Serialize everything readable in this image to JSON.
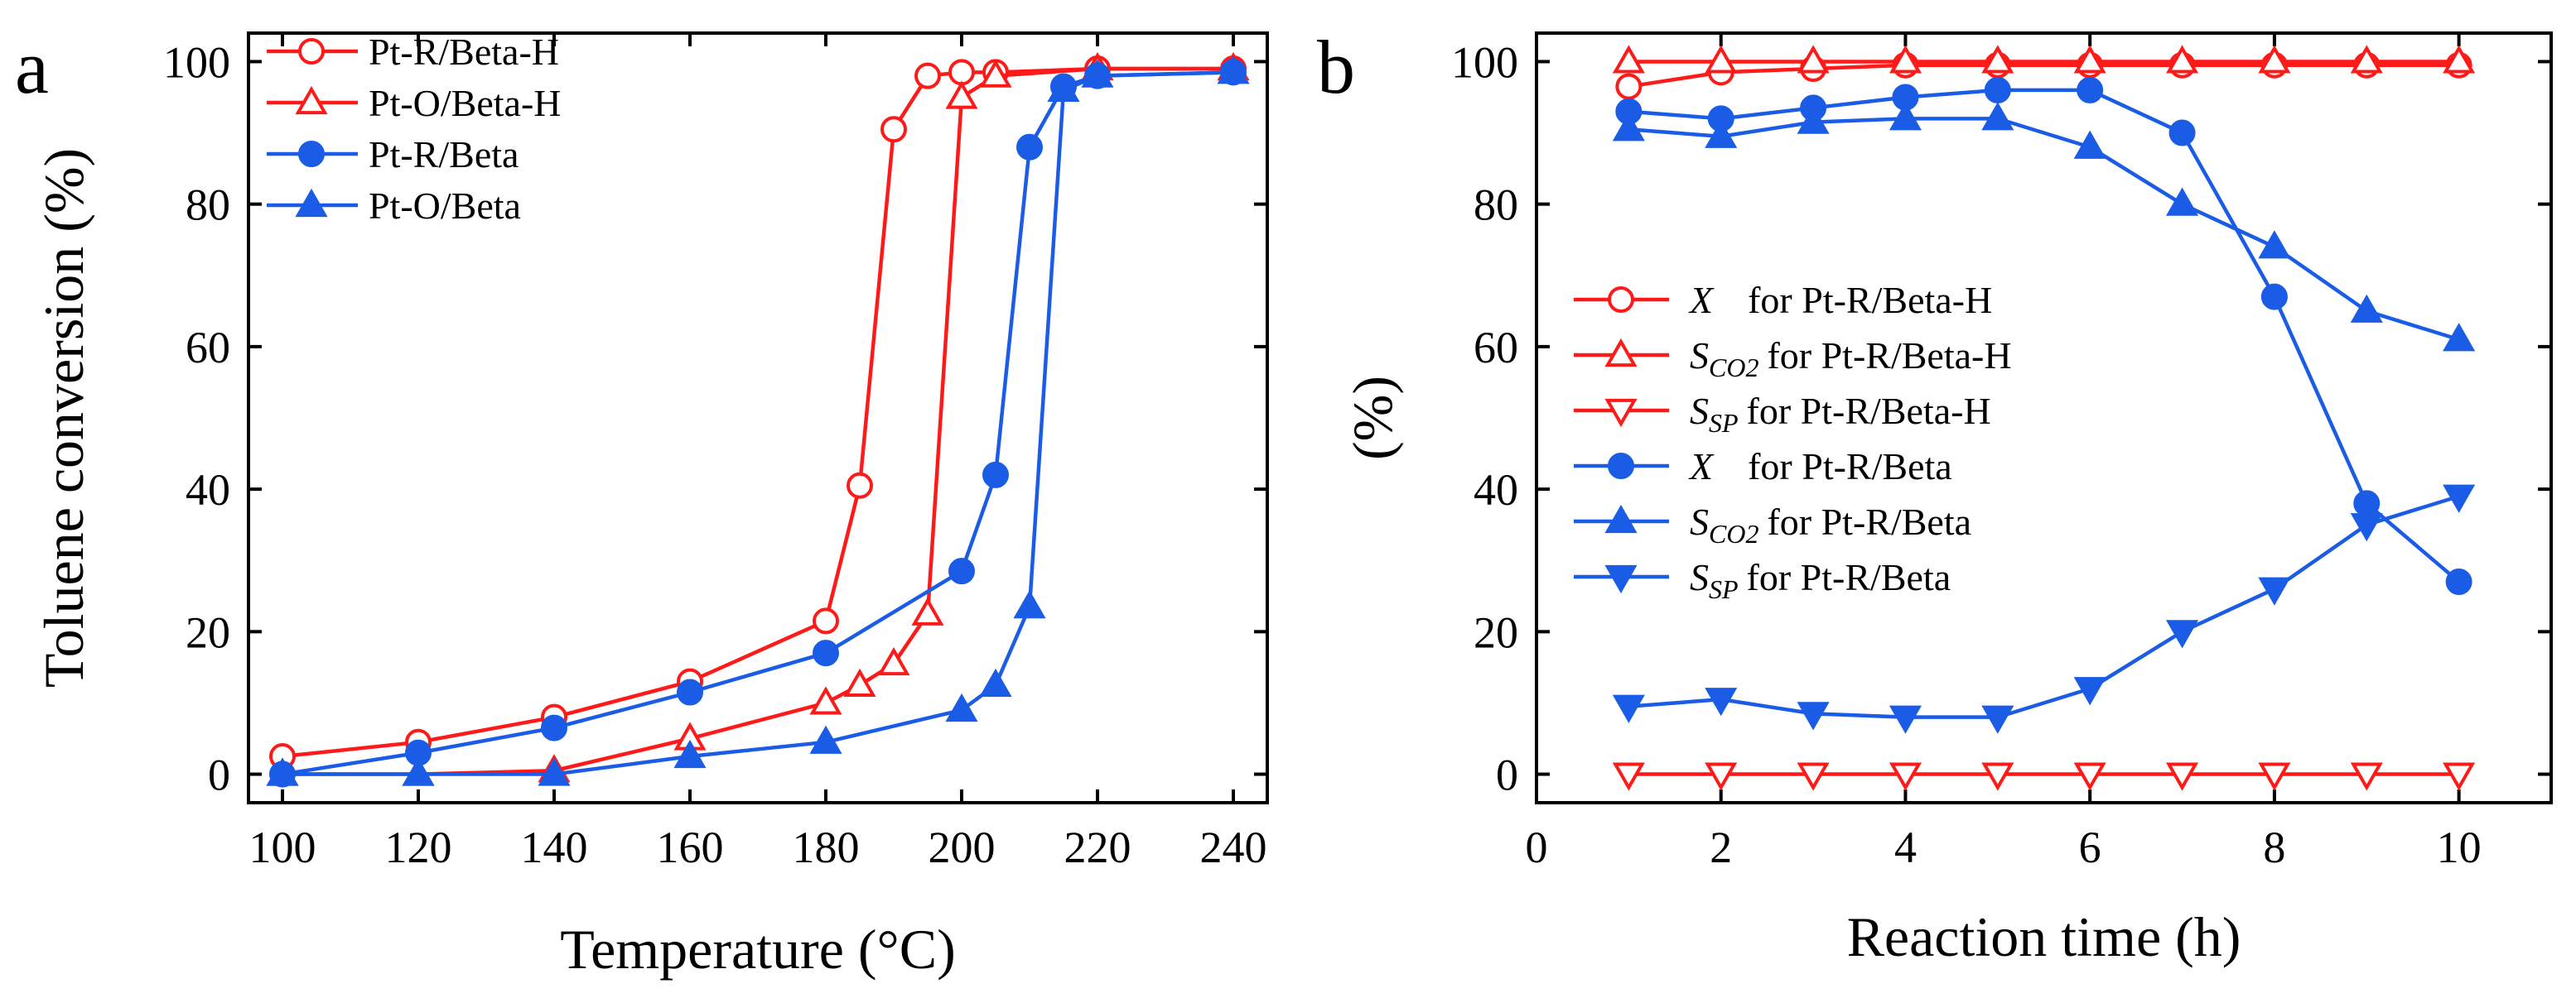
{
  "figure": {
    "panel_a_label": "a",
    "panel_b_label": "b"
  },
  "colors": {
    "red": "#ff1a1a",
    "blue": "#1a5ce6",
    "axis": "#000000"
  },
  "chart_data": [
    {
      "type": "line",
      "panel": "a",
      "title": "",
      "xlabel": "Temperature (°C)",
      "ylabel": "Toluene conversion (%)",
      "xlim": [
        95,
        245
      ],
      "ylim": [
        -4,
        104
      ],
      "xticks": [
        100,
        120,
        140,
        160,
        180,
        200,
        220,
        240
      ],
      "yticks": [
        0,
        20,
        40,
        60,
        80,
        100
      ],
      "legend_position": "top-left",
      "series": [
        {
          "name": "Pt-R/Beta-H",
          "color": "red",
          "marker": "circle",
          "filled": false,
          "x": [
            100,
            120,
            140,
            160,
            180,
            185,
            190,
            195,
            200,
            205,
            220,
            240
          ],
          "y": [
            2.5,
            4.5,
            8,
            13,
            21.5,
            40.5,
            90.5,
            98,
            98.5,
            98.5,
            99,
            99
          ]
        },
        {
          "name": "Pt-O/Beta-H",
          "color": "red",
          "marker": "triangle-up",
          "filled": false,
          "x": [
            100,
            120,
            140,
            160,
            180,
            185,
            190,
            195,
            200,
            205,
            220,
            240
          ],
          "y": [
            0,
            0,
            0.5,
            5,
            10,
            12.5,
            15.5,
            22.5,
            95,
            98,
            99,
            99
          ]
        },
        {
          "name": "Pt-R/Beta",
          "color": "blue",
          "marker": "circle",
          "filled": true,
          "x": [
            100,
            120,
            140,
            160,
            180,
            200,
            205,
            210,
            215,
            220,
            240
          ],
          "y": [
            0,
            3,
            6.5,
            11.5,
            17,
            28.5,
            42,
            88,
            96.5,
            98,
            98.5
          ]
        },
        {
          "name": "Pt-O/Beta",
          "color": "blue",
          "marker": "triangle-up",
          "filled": true,
          "x": [
            100,
            120,
            140,
            160,
            180,
            200,
            205,
            210,
            215,
            220,
            240
          ],
          "y": [
            0,
            0,
            0,
            2.5,
            4.5,
            9,
            12.5,
            23.5,
            96,
            98,
            98.5
          ]
        }
      ]
    },
    {
      "type": "line",
      "panel": "b",
      "title": "",
      "xlabel": "Reaction time (h)",
      "ylabel": "(%)",
      "xlim": [
        0,
        11
      ],
      "ylim": [
        -4,
        104
      ],
      "xticks": [
        0,
        2,
        4,
        6,
        8,
        10
      ],
      "yticks": [
        0,
        20,
        40,
        60,
        80,
        100
      ],
      "legend_position": "center-left",
      "series": [
        {
          "name": "X for Pt-R/Beta-H",
          "symbol": "X",
          "subscript": "",
          "label_suffix": "for Pt-R/Beta-H",
          "color": "red",
          "marker": "circle",
          "filled": false,
          "x": [
            1,
            2,
            3,
            4,
            5,
            6,
            7,
            8,
            9,
            10
          ],
          "y": [
            96.5,
            98.5,
            99,
            99.5,
            99.5,
            99.5,
            99.5,
            99.5,
            99.5,
            99.5
          ]
        },
        {
          "name": "SCO2 for Pt-R/Beta-H",
          "symbol": "S",
          "subscript": "CO2",
          "label_suffix": "for Pt-R/Beta-H",
          "color": "red",
          "marker": "triangle-up",
          "filled": false,
          "x": [
            1,
            2,
            3,
            4,
            5,
            6,
            7,
            8,
            9,
            10
          ],
          "y": [
            100,
            100,
            100,
            100,
            100,
            100,
            100,
            100,
            100,
            100
          ]
        },
        {
          "name": "SSP for Pt-R/Beta-H",
          "symbol": "S",
          "subscript": "SP",
          "label_suffix": "for Pt-R/Beta-H",
          "color": "red",
          "marker": "triangle-down",
          "filled": false,
          "x": [
            1,
            2,
            3,
            4,
            5,
            6,
            7,
            8,
            9,
            10
          ],
          "y": [
            0,
            0,
            0,
            0,
            0,
            0,
            0,
            0,
            0,
            0
          ]
        },
        {
          "name": "X for Pt-R/Beta",
          "symbol": "X",
          "subscript": "",
          "label_suffix": "for Pt-R/Beta",
          "color": "blue",
          "marker": "circle",
          "filled": true,
          "x": [
            1,
            2,
            3,
            4,
            5,
            6,
            7,
            8,
            9,
            10
          ],
          "y": [
            93,
            92,
            93.5,
            95,
            96,
            96,
            90,
            67,
            38,
            27
          ]
        },
        {
          "name": "SCO2 for Pt-R/Beta",
          "symbol": "S",
          "subscript": "CO2",
          "label_suffix": "for Pt-R/Beta",
          "color": "blue",
          "marker": "triangle-up",
          "filled": true,
          "x": [
            1,
            2,
            3,
            4,
            5,
            6,
            7,
            8,
            9,
            10
          ],
          "y": [
            90.5,
            89.5,
            91.5,
            92,
            92,
            88,
            80,
            74,
            65,
            61
          ]
        },
        {
          "name": "SSP for Pt-R/Beta",
          "symbol": "S",
          "subscript": "SP",
          "label_suffix": "for Pt-R/Beta",
          "color": "blue",
          "marker": "triangle-down",
          "filled": true,
          "x": [
            1,
            2,
            3,
            4,
            5,
            6,
            7,
            8,
            9,
            10
          ],
          "y": [
            9.5,
            10.5,
            8.5,
            8,
            8,
            12,
            20,
            26,
            35,
            39
          ]
        }
      ]
    }
  ]
}
